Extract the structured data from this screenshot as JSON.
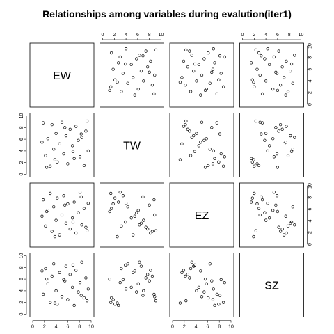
{
  "chart_data": {
    "type": "scatter",
    "title": "Relationships among variables during evalution(iter1)",
    "variables": [
      "EW",
      "TW",
      "EZ",
      "SZ"
    ],
    "range": [
      0,
      10
    ],
    "ticks": [
      "0",
      "2",
      "4",
      "6",
      "8",
      "10"
    ],
    "grid": false,
    "point_style": "open-circle",
    "observations": {
      "EW": [
        1.8,
        2.2,
        2.6,
        3.0,
        3.3,
        3.6,
        4.0,
        4.2,
        4.6,
        5.0,
        5.3,
        5.7,
        6.0,
        6.4,
        6.8,
        7.1,
        7.4,
        7.8,
        8.1,
        8.4,
        8.8,
        9.1,
        9.5,
        1.6,
        3.8,
        5.5,
        6.9,
        8.3,
        2.4,
        9.3
      ],
      "TW": [
        8.8,
        3.2,
        6.1,
        1.4,
        8.5,
        4.3,
        7.0,
        2.1,
        5.2,
        8.9,
        3.5,
        6.6,
        1.8,
        7.7,
        4.9,
        2.7,
        8.2,
        5.8,
        3.0,
        6.3,
        1.5,
        7.4,
        4.0,
        5.5,
        2.5,
        8.0,
        3.9,
        6.9,
        1.2,
        9.1
      ],
      "EZ": [
        7.6,
        3.1,
        5.8,
        8.7,
        2.2,
        6.4,
        4.1,
        7.9,
        1.6,
        5.0,
        8.3,
        3.6,
        6.9,
        2.6,
        4.5,
        7.2,
        1.9,
        5.4,
        8.9,
        3.3,
        6.1,
        2.9,
        7.0,
        4.8,
        1.3,
        6.7,
        3.8,
        8.1,
        5.6,
        2.3
      ],
      "SZ": [
        3.4,
        7.8,
        5.2,
        2.0,
        6.5,
        8.6,
        4.0,
        1.7,
        7.1,
        3.0,
        5.9,
        8.2,
        2.5,
        6.8,
        4.6,
        1.5,
        7.5,
        3.8,
        5.4,
        8.9,
        2.8,
        6.2,
        4.3,
        7.4,
        1.9,
        5.7,
        8.4,
        3.2,
        6.0,
        2.3
      ]
    }
  }
}
